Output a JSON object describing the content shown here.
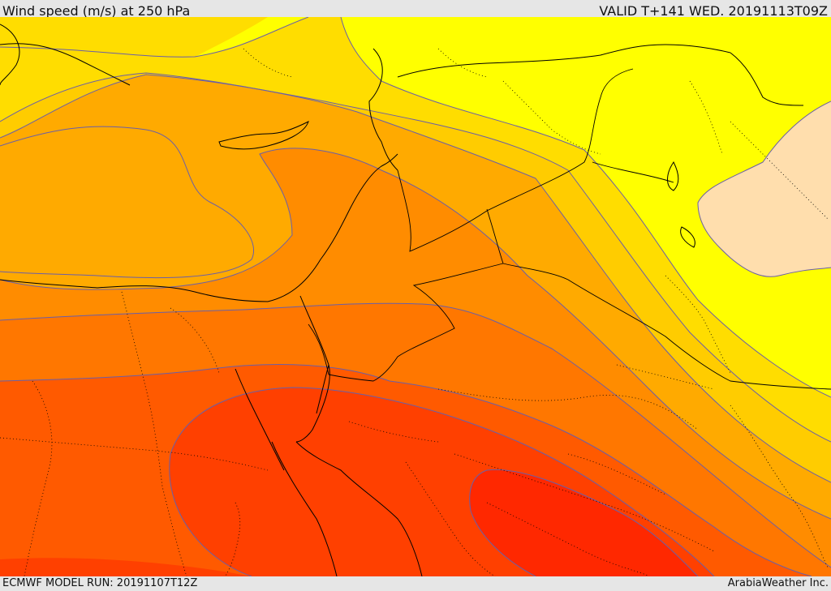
{
  "header": {
    "title": "Wind speed (m/s) at 250 hPa",
    "valid": "VALID T+141 WED. 20191113T09Z"
  },
  "footer": {
    "model_run": "ECMWF MODEL RUN: 20191107T12Z",
    "credit": "ArabiaWeather Inc."
  },
  "map": {
    "field": "wind speed",
    "level": "250 hPa",
    "bands": [
      {
        "name": "weakest",
        "color": "#ffdead"
      },
      {
        "name": "band-1",
        "color": "#ffff00"
      },
      {
        "name": "band-2",
        "color": "#ffdd00"
      },
      {
        "name": "band-3",
        "color": "#ffcc00"
      },
      {
        "name": "band-4",
        "color": "#ffaa00"
      },
      {
        "name": "band-5",
        "color": "#ff8c00"
      },
      {
        "name": "band-6",
        "color": "#ff7700"
      },
      {
        "name": "band-7",
        "color": "#ff5a00"
      },
      {
        "name": "band-8",
        "color": "#ff4000"
      },
      {
        "name": "strongest",
        "color": "#ff2800"
      }
    ],
    "contour_color": "#6a5fa8",
    "coastline_color": "#000000",
    "border_style": "dotted"
  }
}
